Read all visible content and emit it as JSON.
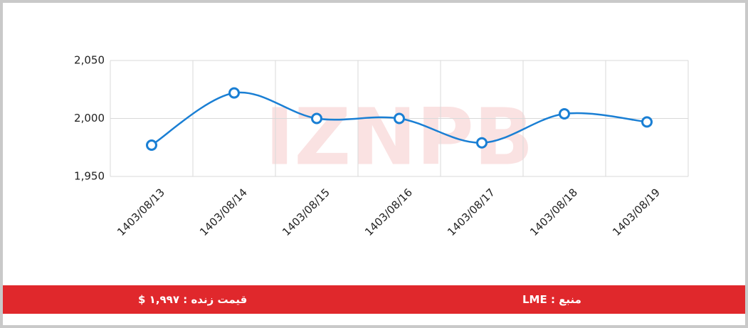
{
  "chart_data": {
    "type": "line",
    "categories": [
      "1403/08/13",
      "1403/08/14",
      "1403/08/15",
      "1403/08/16",
      "1403/08/17",
      "1403/08/18",
      "1403/08/19"
    ],
    "values": [
      1977,
      2022,
      2000,
      2000,
      1979,
      2004,
      1997
    ],
    "color": "#1a7fd4",
    "ylim": [
      1950,
      2050
    ],
    "yticks": [
      {
        "value": 1950,
        "label": "1,950"
      },
      {
        "value": 2000,
        "label": "2,000"
      },
      {
        "value": 2050,
        "label": "2,050"
      }
    ],
    "grid": true,
    "watermark": "IZNPB"
  },
  "footer": {
    "price": "قیمت زنده : ۱,۹۹۷ $",
    "source": "منبع : LME"
  }
}
